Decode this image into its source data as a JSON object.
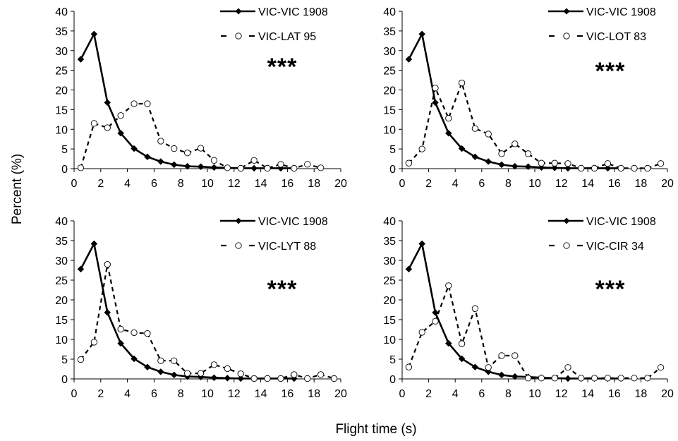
{
  "figure": {
    "ylabel": "Percent (%)",
    "xlabel": "Flight time (s)"
  },
  "chart_data": [
    {
      "type": "line",
      "xlim": [
        0,
        20
      ],
      "ylim": [
        0,
        40
      ],
      "xticks": [
        0,
        2,
        4,
        6,
        8,
        10,
        12,
        14,
        16,
        18,
        20
      ],
      "yticks": [
        0,
        5,
        10,
        15,
        20,
        25,
        30,
        35,
        40
      ],
      "legend_position": "top-right",
      "annotation": "***",
      "series": [
        {
          "name": "VIC-VIC 1908",
          "style": "solid-diamond",
          "color": "#000000",
          "x": [
            0.5,
            1.5,
            2.5,
            3.5,
            4.5,
            5.5,
            6.5,
            7.5,
            8.5,
            9.5,
            10.5,
            11.5,
            12.5,
            13.5,
            14.5,
            15.5,
            16.5
          ],
          "y": [
            27.8,
            34.2,
            16.8,
            9.0,
            5.1,
            3.0,
            1.8,
            1.0,
            0.6,
            0.5,
            0.3,
            0.2,
            0.1,
            0.1,
            0.1,
            0.1,
            0.1
          ]
        },
        {
          "name": "VIC-LAT 95",
          "style": "dashed-circle",
          "color": "#000000",
          "x": [
            0.5,
            1.5,
            2.5,
            3.5,
            4.5,
            5.5,
            6.5,
            7.5,
            8.5,
            9.5,
            10.5,
            11.5,
            12.5,
            13.5,
            14.5,
            15.5,
            16.5,
            17.5,
            18.5
          ],
          "y": [
            0.2,
            11.5,
            10.4,
            13.5,
            16.5,
            16.5,
            7.0,
            5.1,
            4.0,
            5.2,
            2.1,
            0.2,
            0.1,
            2.1,
            0.1,
            1.1,
            0.1,
            1.1,
            0.2
          ]
        }
      ]
    },
    {
      "type": "line",
      "xlim": [
        0,
        20
      ],
      "ylim": [
        0,
        40
      ],
      "xticks": [
        0,
        2,
        4,
        6,
        8,
        10,
        12,
        14,
        16,
        18,
        20
      ],
      "yticks": [
        0,
        5,
        10,
        15,
        20,
        25,
        30,
        35,
        40
      ],
      "legend_position": "top-right",
      "annotation": "***",
      "series": [
        {
          "name": "VIC-VIC 1908",
          "style": "solid-diamond",
          "color": "#000000",
          "x": [
            0.5,
            1.5,
            2.5,
            3.5,
            4.5,
            5.5,
            6.5,
            7.5,
            8.5,
            9.5,
            10.5,
            11.5,
            12.5,
            13.5,
            14.5,
            15.5,
            16.5
          ],
          "y": [
            27.8,
            34.2,
            16.8,
            9.0,
            5.1,
            3.0,
            1.8,
            1.0,
            0.6,
            0.5,
            0.3,
            0.2,
            0.1,
            0.1,
            0.1,
            0.1,
            0.1
          ]
        },
        {
          "name": "VIC-LOT 83",
          "style": "dashed-circle",
          "color": "#000000",
          "x": [
            0.5,
            1.5,
            2.5,
            3.5,
            4.5,
            5.5,
            6.5,
            7.5,
            8.5,
            9.5,
            10.5,
            11.5,
            12.5,
            13.5,
            14.5,
            15.5,
            16.5,
            17.5,
            18.5,
            19.5
          ],
          "y": [
            1.4,
            5.0,
            20.5,
            12.8,
            21.8,
            10.2,
            8.8,
            3.8,
            6.3,
            3.8,
            1.4,
            1.4,
            1.3,
            0.1,
            0.1,
            1.3,
            0.1,
            0.1,
            0.1,
            1.3
          ]
        }
      ]
    },
    {
      "type": "line",
      "xlim": [
        0,
        20
      ],
      "ylim": [
        0,
        40
      ],
      "xticks": [
        0,
        2,
        4,
        6,
        8,
        10,
        12,
        14,
        16,
        18,
        20
      ],
      "yticks": [
        0,
        5,
        10,
        15,
        20,
        25,
        30,
        35,
        40
      ],
      "legend_position": "top-right",
      "annotation": "***",
      "series": [
        {
          "name": "VIC-VIC 1908",
          "style": "solid-diamond",
          "color": "#000000",
          "x": [
            0.5,
            1.5,
            2.5,
            3.5,
            4.5,
            5.5,
            6.5,
            7.5,
            8.5,
            9.5,
            10.5,
            11.5,
            12.5,
            13.5,
            14.5,
            15.5,
            16.5
          ],
          "y": [
            27.8,
            34.2,
            16.8,
            9.0,
            5.1,
            3.0,
            1.8,
            1.0,
            0.6,
            0.5,
            0.3,
            0.2,
            0.1,
            0.1,
            0.1,
            0.1,
            0.1
          ]
        },
        {
          "name": "VIC-LYT 88",
          "style": "dashed-circle",
          "color": "#000000",
          "x": [
            0.5,
            1.5,
            2.5,
            3.5,
            4.5,
            5.5,
            6.5,
            7.5,
            8.5,
            9.5,
            10.5,
            11.5,
            12.5,
            13.5,
            14.5,
            15.5,
            16.5,
            17.5,
            18.5,
            19.5
          ],
          "y": [
            4.9,
            9.3,
            29.0,
            12.6,
            11.7,
            11.5,
            4.6,
            4.6,
            1.4,
            1.4,
            3.6,
            2.6,
            1.3,
            0.1,
            0.1,
            0.1,
            1.1,
            0.1,
            1.1,
            0.1
          ]
        }
      ]
    },
    {
      "type": "line",
      "xlim": [
        0,
        20
      ],
      "ylim": [
        0,
        40
      ],
      "xticks": [
        0,
        2,
        4,
        6,
        8,
        10,
        12,
        14,
        16,
        18,
        20
      ],
      "yticks": [
        0,
        5,
        10,
        15,
        20,
        25,
        30,
        35,
        40
      ],
      "legend_position": "top-right",
      "annotation": "***",
      "series": [
        {
          "name": "VIC-VIC 1908",
          "style": "solid-diamond",
          "color": "#000000",
          "x": [
            0.5,
            1.5,
            2.5,
            3.5,
            4.5,
            5.5,
            6.5,
            7.5,
            8.5,
            9.5,
            10.5,
            11.5,
            12.5,
            13.5,
            14.5,
            15.5,
            16.5
          ],
          "y": [
            27.8,
            34.2,
            16.8,
            9.0,
            5.1,
            3.0,
            1.8,
            1.0,
            0.6,
            0.5,
            0.3,
            0.2,
            0.1,
            0.1,
            0.1,
            0.1,
            0.1
          ]
        },
        {
          "name": "VIC-CIR 34",
          "style": "dashed-circle",
          "color": "#000000",
          "x": [
            0.5,
            1.5,
            2.5,
            3.5,
            4.5,
            5.5,
            6.5,
            7.5,
            8.5,
            9.5,
            10.5,
            11.5,
            12.5,
            13.5,
            14.5,
            15.5,
            16.5,
            17.5,
            18.5,
            19.5
          ],
          "y": [
            3.0,
            11.8,
            14.6,
            23.6,
            8.9,
            17.8,
            2.9,
            5.9,
            5.9,
            0.2,
            0.2,
            0.2,
            2.9,
            0.2,
            0.2,
            0.2,
            0.2,
            0.2,
            0.2,
            2.9
          ]
        }
      ]
    }
  ]
}
